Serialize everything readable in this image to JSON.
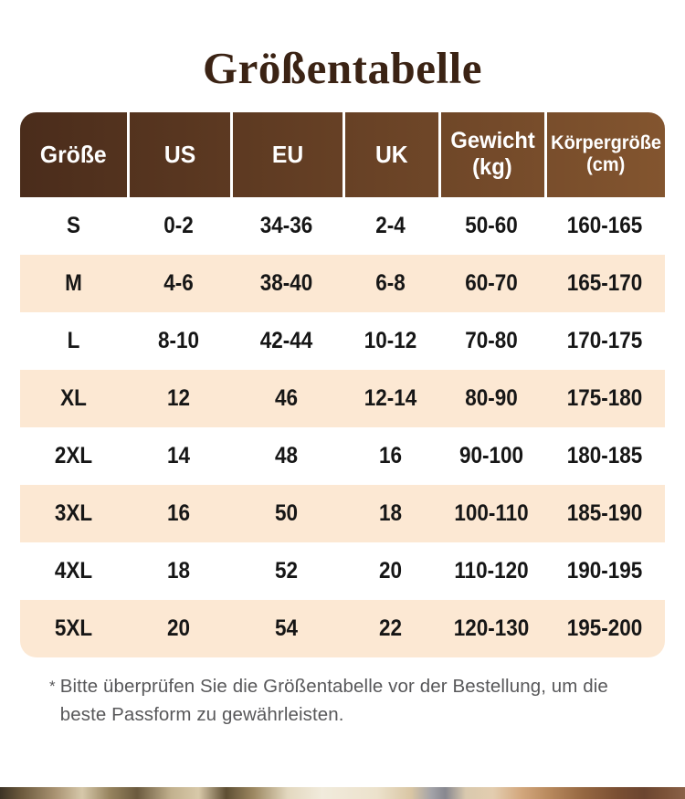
{
  "title": "Größentabelle",
  "colors": {
    "title": "#3b2314",
    "header_left": "#4a2c1b",
    "header_right": "#83552f",
    "header_text": "#ffffff",
    "row_alt": "#fce8d3",
    "row_text": "#161616",
    "footnote": "#58585a"
  },
  "chart_data": {
    "type": "table",
    "title": "Größentabelle",
    "columns": [
      "Größe",
      "US",
      "EU",
      "UK",
      "Gewicht (kg)",
      "Körpergröße (cm)"
    ],
    "rows": [
      [
        "S",
        "0-2",
        "34-36",
        "2-4",
        "50-60",
        "160-165"
      ],
      [
        "M",
        "4-6",
        "38-40",
        "6-8",
        "60-70",
        "165-170"
      ],
      [
        "L",
        "8-10",
        "42-44",
        "10-12",
        "70-80",
        "170-175"
      ],
      [
        "XL",
        "12",
        "46",
        "12-14",
        "80-90",
        "175-180"
      ],
      [
        "2XL",
        "14",
        "48",
        "16",
        "90-100",
        "180-185"
      ],
      [
        "3XL",
        "16",
        "50",
        "18",
        "100-110",
        "185-190"
      ],
      [
        "4XL",
        "18",
        "52",
        "20",
        "110-120",
        "190-195"
      ],
      [
        "5XL",
        "20",
        "54",
        "22",
        "120-130",
        "195-200"
      ]
    ]
  },
  "table": {
    "columns": [
      {
        "lines": [
          "Größe"
        ]
      },
      {
        "lines": [
          "US"
        ]
      },
      {
        "lines": [
          "EU"
        ]
      },
      {
        "lines": [
          "UK"
        ]
      },
      {
        "lines": [
          "Gewicht",
          "(kg)"
        ]
      },
      {
        "lines": [
          "Körpergröße",
          "(cm)"
        ]
      }
    ],
    "rows": [
      {
        "cells": [
          "S",
          "0-2",
          "34-36",
          "2-4",
          "50-60",
          "160-165"
        ]
      },
      {
        "cells": [
          "M",
          "4-6",
          "38-40",
          "6-8",
          "60-70",
          "165-170"
        ]
      },
      {
        "cells": [
          "L",
          "8-10",
          "42-44",
          "10-12",
          "70-80",
          "170-175"
        ]
      },
      {
        "cells": [
          "XL",
          "12",
          "46",
          "12-14",
          "80-90",
          "175-180"
        ]
      },
      {
        "cells": [
          "2XL",
          "14",
          "48",
          "16",
          "90-100",
          "180-185"
        ]
      },
      {
        "cells": [
          "3XL",
          "16",
          "50",
          "18",
          "100-110",
          "185-190"
        ]
      },
      {
        "cells": [
          "4XL",
          "18",
          "52",
          "20",
          "110-120",
          "190-195"
        ]
      },
      {
        "cells": [
          "5XL",
          "20",
          "54",
          "22",
          "120-130",
          "195-200"
        ]
      }
    ]
  },
  "footnote": {
    "marker": "*",
    "text": "Bitte überprüfen Sie die Größentabelle vor der Bestellung, um die beste Passform zu gewährleisten."
  }
}
